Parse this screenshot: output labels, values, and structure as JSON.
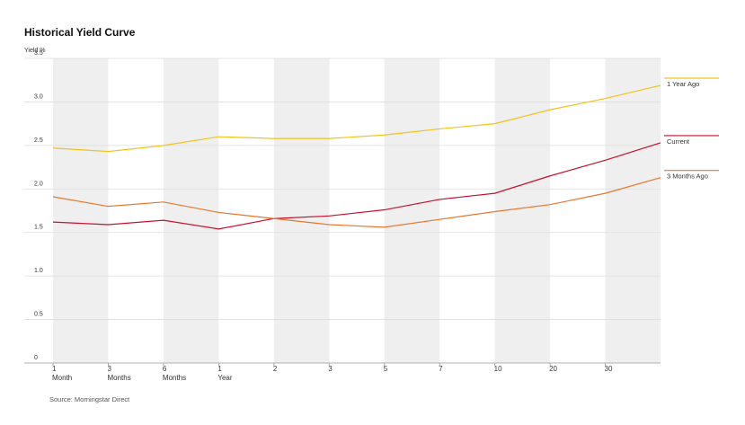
{
  "chart_data": {
    "type": "line",
    "title": "Historical Yield Curve",
    "y_label": "Yield %",
    "source": "Source: Morningstar Direct",
    "categories": [
      "1\nMonth",
      "3\nMonths",
      "6\nMonths",
      "1\nYear",
      "2",
      "3",
      "5",
      "7",
      "10",
      "20",
      "30",
      null
    ],
    "series": [
      {
        "name": "1 Year Ago",
        "color": "#f2c31b",
        "values": [
          2.47,
          2.43,
          2.5,
          2.6,
          2.58,
          2.58,
          2.62,
          2.69,
          2.75,
          2.91,
          3.04,
          3.19
        ]
      },
      {
        "name": "Current",
        "color": "#c8102e",
        "values": [
          1.62,
          1.59,
          1.64,
          1.54,
          1.66,
          1.69,
          1.76,
          1.88,
          1.95,
          2.15,
          2.33,
          2.53
        ]
      },
      {
        "name": "3 Months Ago",
        "color": "#e8772e",
        "values": [
          1.91,
          1.8,
          1.85,
          1.73,
          1.66,
          1.59,
          1.56,
          1.65,
          1.74,
          1.82,
          1.95,
          2.13
        ]
      }
    ],
    "ylim": [
      0,
      3.5
    ],
    "yticks": [
      0,
      0.5,
      {
        "value": 1,
        "label": "1.0"
      },
      1.5,
      {
        "value": 2,
        "label": "2.0"
      },
      2.5,
      {
        "value": 3,
        "label": "3.0"
      },
      3.5
    ],
    "grid": true,
    "legend": "right"
  }
}
